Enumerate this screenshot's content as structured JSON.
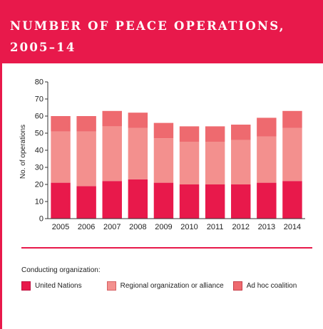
{
  "header": {
    "title_line1": "NUMBER OF PEACE OPERATIONS,",
    "title_line2": "2005–14"
  },
  "chart_data": {
    "type": "bar",
    "stacked": true,
    "categories": [
      "2005",
      "2006",
      "2007",
      "2008",
      "2009",
      "2010",
      "2011",
      "2012",
      "2013",
      "2014"
    ],
    "series": [
      {
        "name": "United Nations",
        "values": [
          21,
          19,
          22,
          23,
          21,
          20,
          20,
          20,
          21,
          22
        ],
        "color": "#e8194b"
      },
      {
        "name": "Regional organization or alliance",
        "values": [
          30,
          32,
          32,
          30,
          26,
          25,
          25,
          26,
          27,
          31
        ],
        "color": "#f3908e"
      },
      {
        "name": "Ad hoc coalition",
        "values": [
          9,
          9,
          9,
          9,
          9,
          9,
          9,
          9,
          11,
          10
        ],
        "color": "#ee6a6f"
      }
    ],
    "ylabel": "No. of operations",
    "ylim": [
      0,
      80
    ],
    "yticks": [
      0,
      10,
      20,
      30,
      40,
      50,
      60,
      70,
      80
    ],
    "grid": false,
    "legend_position": "bottom"
  },
  "legend": {
    "title": "Conducting organization:",
    "items": [
      {
        "label": "United Nations",
        "color": "#e8194b"
      },
      {
        "label": "Regional organization or alliance",
        "color": "#f3908e"
      },
      {
        "label": "Ad hoc coalition",
        "color": "#ee6a6f"
      }
    ]
  },
  "colors": {
    "accent": "#e8194b",
    "axis": "#333333",
    "text": "#222222"
  }
}
